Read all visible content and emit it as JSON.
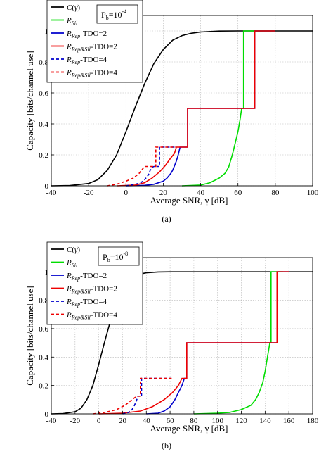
{
  "captions": {
    "a": "(a)",
    "b": "(b)"
  },
  "chart_data": [
    {
      "type": "line",
      "panel": "(a)",
      "xlabel": "Average SNR, γ [dB]",
      "ylabel": "Capacity [bits/channel use]",
      "xlim": [
        -40,
        100
      ],
      "ylim": [
        0,
        1.1
      ],
      "xticks": [
        -40,
        -20,
        0,
        20,
        40,
        60,
        80,
        100
      ],
      "yticks": [
        0,
        0.2,
        0.4,
        0.6,
        0.8,
        1
      ],
      "grid": true,
      "legend_position": "top-left",
      "annotation": "P_b=10^-4",
      "series": [
        {
          "name": "C(γ)",
          "color": "#000000",
          "dash": "solid",
          "points": [
            [
              -40,
              0
            ],
            [
              -30,
              0.002
            ],
            [
              -20,
              0.015
            ],
            [
              -15,
              0.04
            ],
            [
              -10,
              0.1
            ],
            [
              -5,
              0.2
            ],
            [
              0,
              0.35
            ],
            [
              5,
              0.51
            ],
            [
              10,
              0.66
            ],
            [
              15,
              0.79
            ],
            [
              20,
              0.88
            ],
            [
              25,
              0.94
            ],
            [
              30,
              0.97
            ],
            [
              35,
              0.985
            ],
            [
              40,
              0.993
            ],
            [
              50,
              0.999
            ],
            [
              60,
              1
            ],
            [
              100,
              1
            ]
          ]
        },
        {
          "name": "R_Sil",
          "color": "#00dd00",
          "dash": "solid",
          "points": [
            [
              30,
              0
            ],
            [
              40,
              0.005
            ],
            [
              45,
              0.02
            ],
            [
              50,
              0.05
            ],
            [
              53,
              0.08
            ],
            [
              55,
              0.12
            ],
            [
              57,
              0.2
            ],
            [
              58,
              0.25
            ],
            [
              59,
              0.3
            ],
            [
              60,
              0.35
            ],
            [
              61,
              0.42
            ],
            [
              62,
              0.5
            ],
            [
              63,
              0.5
            ],
            [
              63,
              1
            ],
            [
              80,
              1
            ]
          ]
        },
        {
          "name": "R_Rep-TDO=2",
          "color": "#0000cc",
          "dash": "solid",
          "points": [
            [
              0,
              0
            ],
            [
              10,
              0.003
            ],
            [
              15,
              0.01
            ],
            [
              20,
              0.03
            ],
            [
              22,
              0.05
            ],
            [
              24,
              0.08
            ],
            [
              25,
              0.1
            ],
            [
              26,
              0.13
            ],
            [
              27,
              0.16
            ],
            [
              28,
              0.2
            ],
            [
              29,
              0.25
            ],
            [
              30,
              0.25
            ],
            [
              33,
              0.25
            ],
            [
              33,
              0.5
            ],
            [
              69,
              0.5
            ],
            [
              69,
              1
            ],
            [
              80,
              1
            ]
          ]
        },
        {
          "name": "R_Rep&Sil-TDO=2",
          "color": "#ee0000",
          "dash": "solid",
          "points": [
            [
              -5,
              0
            ],
            [
              5,
              0.005
            ],
            [
              10,
              0.02
            ],
            [
              14,
              0.05
            ],
            [
              18,
              0.09
            ],
            [
              21,
              0.13
            ],
            [
              24,
              0.18
            ],
            [
              26,
              0.21
            ],
            [
              27,
              0.25
            ],
            [
              33,
              0.25
            ],
            [
              33,
              0.5
            ],
            [
              69,
              0.5
            ],
            [
              69,
              1
            ],
            [
              80,
              1
            ]
          ]
        },
        {
          "name": "R_Rep-TDO=4",
          "color": "#0000cc",
          "dash": "dashed",
          "points": [
            [
              0,
              0
            ],
            [
              5,
              0.01
            ],
            [
              8,
              0.02
            ],
            [
              10,
              0.04
            ],
            [
              12,
              0.07
            ],
            [
              13,
              0.1
            ],
            [
              14,
              0.12
            ],
            [
              15,
              0.125
            ],
            [
              18,
              0.125
            ],
            [
              18,
              0.25
            ],
            [
              27,
              0.25
            ]
          ]
        },
        {
          "name": "R_Rep&Sil-TDO=4",
          "color": "#ee0000",
          "dash": "dashed",
          "points": [
            [
              -10,
              0
            ],
            [
              -5,
              0.01
            ],
            [
              0,
              0.03
            ],
            [
              4,
              0.05
            ],
            [
              7,
              0.08
            ],
            [
              9,
              0.11
            ],
            [
              10,
              0.125
            ],
            [
              16,
              0.125
            ],
            [
              16,
              0.25
            ],
            [
              27,
              0.25
            ]
          ]
        }
      ]
    },
    {
      "type": "line",
      "panel": "(b)",
      "xlabel": "Average SNR, γ [dB]",
      "ylabel": "Capacity [bits/channel use]",
      "xlim": [
        -40,
        180
      ],
      "ylim": [
        0,
        1.1
      ],
      "xticks": [
        -40,
        -20,
        0,
        20,
        40,
        60,
        80,
        100,
        120,
        140,
        160,
        180
      ],
      "yticks": [
        0,
        0.2,
        0.4,
        0.6,
        0.8,
        1
      ],
      "grid": true,
      "legend_position": "top-left",
      "annotation": "P_b=10^-8",
      "series": [
        {
          "name": "C(γ)",
          "color": "#000000",
          "dash": "solid",
          "points": [
            [
              -40,
              0
            ],
            [
              -30,
              0.002
            ],
            [
              -20,
              0.015
            ],
            [
              -15,
              0.04
            ],
            [
              -10,
              0.1
            ],
            [
              -5,
              0.2
            ],
            [
              0,
              0.35
            ],
            [
              5,
              0.51
            ],
            [
              10,
              0.66
            ],
            [
              15,
              0.79
            ],
            [
              20,
              0.88
            ],
            [
              25,
              0.94
            ],
            [
              30,
              0.97
            ],
            [
              35,
              0.985
            ],
            [
              40,
              0.993
            ],
            [
              50,
              0.999
            ],
            [
              60,
              1
            ],
            [
              180,
              1
            ]
          ]
        },
        {
          "name": "R_Sil",
          "color": "#00dd00",
          "dash": "solid",
          "points": [
            [
              80,
              0
            ],
            [
              100,
              0.005
            ],
            [
              110,
              0.01
            ],
            [
              120,
              0.03
            ],
            [
              128,
              0.06
            ],
            [
              132,
              0.1
            ],
            [
              135,
              0.15
            ],
            [
              138,
              0.22
            ],
            [
              140,
              0.3
            ],
            [
              142,
              0.4
            ],
            [
              144,
              0.5
            ],
            [
              145,
              0.5
            ],
            [
              145,
              1
            ],
            [
              155,
              1
            ]
          ]
        },
        {
          "name": "R_Rep-TDO=2",
          "color": "#0000cc",
          "dash": "solid",
          "points": [
            [
              40,
              0
            ],
            [
              50,
              0.005
            ],
            [
              55,
              0.02
            ],
            [
              60,
              0.05
            ],
            [
              64,
              0.1
            ],
            [
              67,
              0.15
            ],
            [
              70,
              0.2
            ],
            [
              72,
              0.25
            ],
            [
              74,
              0.25
            ],
            [
              74,
              0.5
            ],
            [
              150,
              0.5
            ],
            [
              150,
              1
            ],
            [
              160,
              1
            ]
          ]
        },
        {
          "name": "R_Rep&Sil-TDO=2",
          "color": "#ee0000",
          "dash": "solid",
          "points": [
            [
              0,
              0
            ],
            [
              20,
              0.005
            ],
            [
              35,
              0.02
            ],
            [
              45,
              0.05
            ],
            [
              55,
              0.1
            ],
            [
              62,
              0.15
            ],
            [
              67,
              0.2
            ],
            [
              70,
              0.25
            ],
            [
              74,
              0.25
            ],
            [
              74,
              0.5
            ],
            [
              150,
              0.5
            ],
            [
              150,
              1
            ],
            [
              160,
              1
            ]
          ]
        },
        {
          "name": "R_Rep-TDO=4",
          "color": "#0000cc",
          "dash": "dashed",
          "points": [
            [
              20,
              0
            ],
            [
              25,
              0.01
            ],
            [
              28,
              0.03
            ],
            [
              30,
              0.06
            ],
            [
              32,
              0.1
            ],
            [
              33,
              0.125
            ],
            [
              36,
              0.125
            ],
            [
              36,
              0.25
            ],
            [
              62,
              0.25
            ]
          ]
        },
        {
          "name": "R_Rep&Sil-TDO=4",
          "color": "#ee0000",
          "dash": "dashed",
          "points": [
            [
              -5,
              0
            ],
            [
              5,
              0.01
            ],
            [
              15,
              0.03
            ],
            [
              22,
              0.06
            ],
            [
              28,
              0.1
            ],
            [
              32,
              0.125
            ],
            [
              35,
              0.125
            ],
            [
              35,
              0.25
            ],
            [
              62,
              0.25
            ]
          ]
        }
      ]
    }
  ]
}
